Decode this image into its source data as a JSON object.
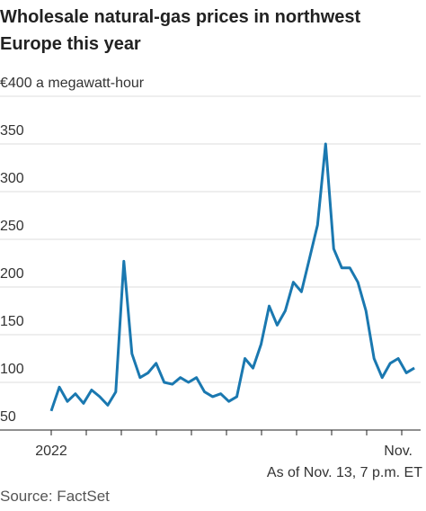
{
  "chart_data": {
    "type": "line",
    "title": "Wholesale natural-gas prices in northwest Europe this year",
    "note": "As of Nov. 13, 7 p.m. ET",
    "source": "Source: FactSet",
    "categories": [
      "2022",
      null,
      null,
      null,
      null,
      null,
      null,
      null,
      null,
      null,
      null,
      null,
      null,
      null,
      null,
      null,
      null,
      null,
      null,
      null,
      null,
      null,
      null,
      null,
      null,
      null,
      null,
      null,
      null,
      null,
      null,
      null,
      null,
      null,
      null,
      null,
      null,
      null,
      null,
      null,
      null,
      null,
      null,
      "Nov.",
      null,
      null
    ],
    "series": [
      {
        "name": "Natural-gas price",
        "color": "#1a78b0",
        "values": [
          70,
          95,
          80,
          88,
          78,
          92,
          85,
          76,
          90,
          227,
          130,
          105,
          110,
          120,
          100,
          98,
          105,
          100,
          105,
          90,
          85,
          88,
          80,
          85,
          125,
          115,
          140,
          180,
          160,
          175,
          205,
          195,
          230,
          265,
          350,
          240,
          220,
          220,
          205,
          175,
          125,
          105,
          120,
          125,
          110,
          115
        ]
      }
    ],
    "ylim": [
      50,
      400
    ],
    "yticks": [
      50,
      100,
      150,
      200,
      250,
      300,
      350,
      {
        "value": 400,
        "label": "€400 a megawatt-hour"
      }
    ],
    "grid": true
  }
}
